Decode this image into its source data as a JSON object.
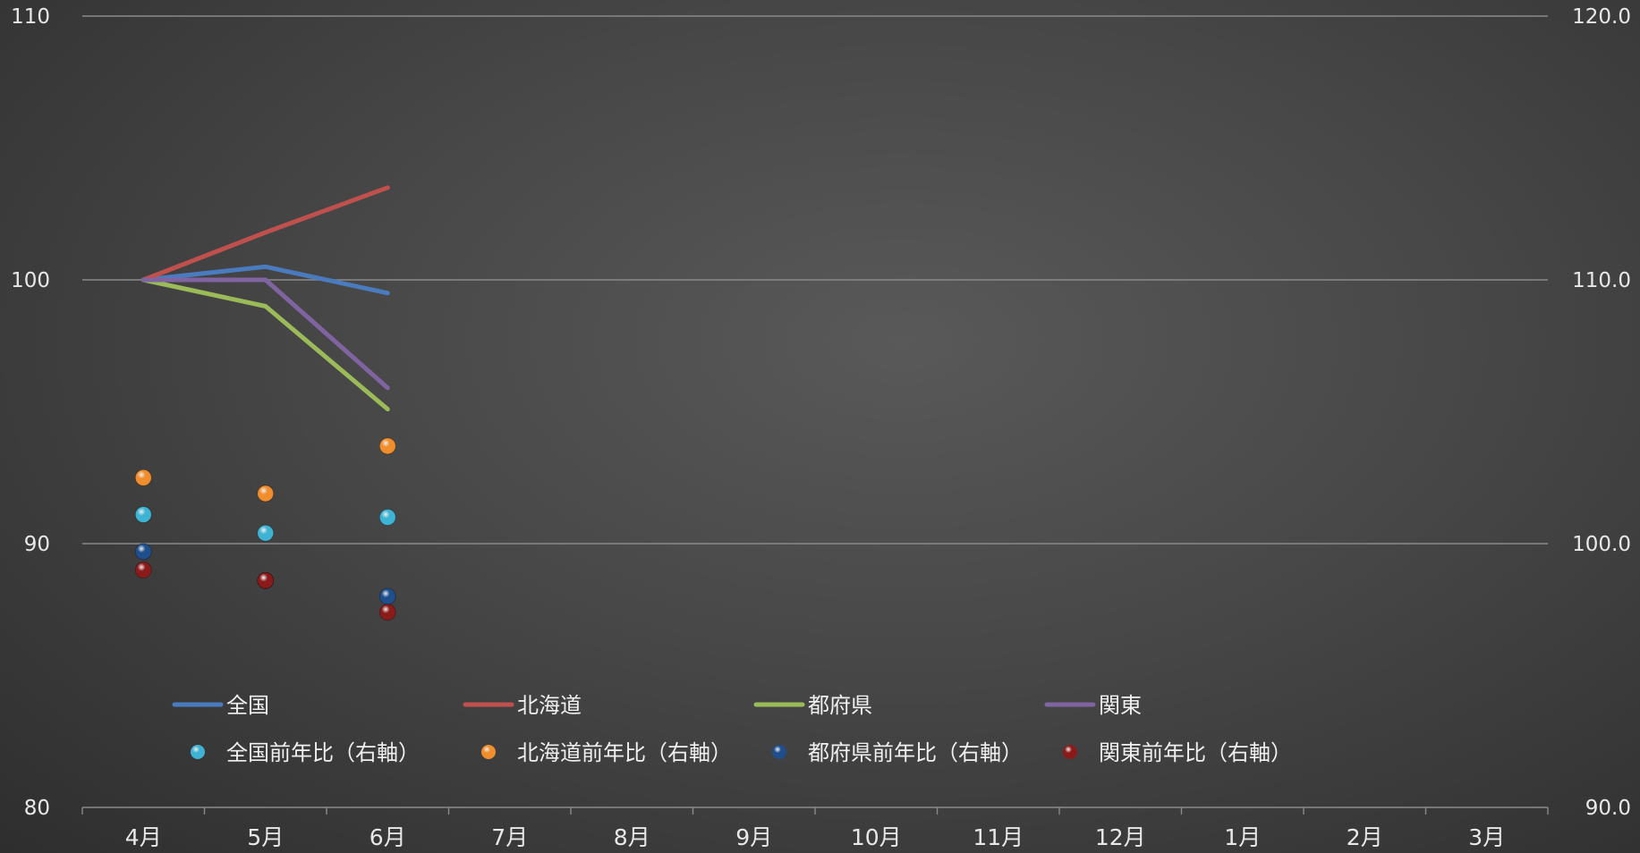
{
  "chart_data": {
    "type": "line",
    "categories": [
      "4月",
      "5月",
      "6月",
      "7月",
      "8月",
      "9月",
      "10月",
      "11月",
      "12月",
      "1月",
      "2月",
      "3月"
    ],
    "y_left": {
      "min": 80,
      "max": 110,
      "ticks": [
        "80",
        "90",
        "100",
        "110"
      ]
    },
    "y_right": {
      "min": 90,
      "max": 120,
      "ticks": [
        "90.0",
        "100.0",
        "110.0",
        "120.0"
      ]
    },
    "grid": true,
    "legend_position": "bottom-inside",
    "line_series": [
      {
        "name": "全国",
        "color": "#4a7bbf",
        "values": [
          100,
          100.5,
          99.5
        ]
      },
      {
        "name": "北海道",
        "color": "#c0504d",
        "values": [
          100,
          101.8,
          103.5
        ]
      },
      {
        "name": "都府県",
        "color": "#9bbb59",
        "values": [
          100,
          99.0,
          95.1
        ]
      },
      {
        "name": "関東",
        "color": "#8064a2",
        "values": [
          100,
          100,
          95.9
        ]
      }
    ],
    "marker_series": [
      {
        "name": "全国前年比（右軸）",
        "color": "#3fb3d3",
        "values": [
          101.1,
          100.4,
          101.0
        ]
      },
      {
        "name": "北海道前年比（右軸）",
        "color": "#f08d2c",
        "values": [
          102.5,
          101.9,
          103.7
        ]
      },
      {
        "name": "都府県前年比（右軸）",
        "color": "#1f4e8c",
        "values": [
          99.7,
          98.6,
          98.0
        ]
      },
      {
        "name": "関東前年比（右軸）",
        "color": "#8b1a1a",
        "values": [
          99.0,
          98.6,
          97.4
        ]
      }
    ]
  }
}
